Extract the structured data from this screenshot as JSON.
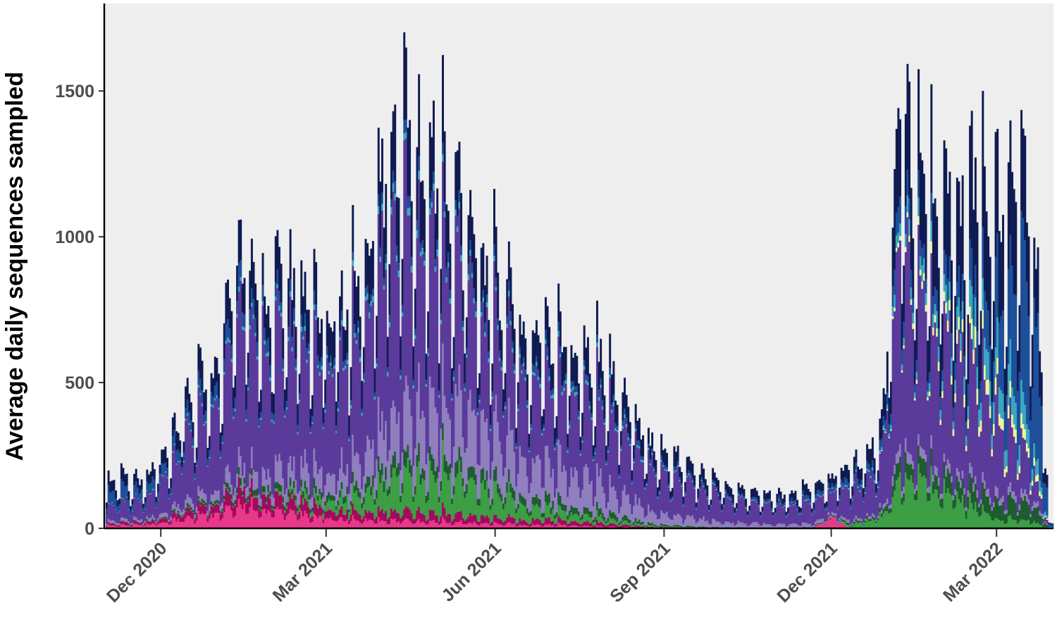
{
  "chart_data": {
    "type": "bar",
    "stacked": true,
    "title": "",
    "xlabel": "",
    "ylabel": "Average daily sequences sampled",
    "x_range": [
      "2020-11-01",
      "2022-03-31"
    ],
    "ylim": [
      0,
      1800
    ],
    "grid": false,
    "legend": "none",
    "x_ticks": [
      {
        "date": "2020-12-01",
        "label": "Dec 2020"
      },
      {
        "date": "2021-03-01",
        "label": "Mar 2021"
      },
      {
        "date": "2021-06-01",
        "label": "Jun 2021"
      },
      {
        "date": "2021-09-01",
        "label": "Sep 2021"
      },
      {
        "date": "2021-12-01",
        "label": "Dec 2021"
      },
      {
        "date": "2022-03-01",
        "label": "Mar 2022"
      }
    ],
    "y_ticks": [
      0,
      500,
      1000,
      1500
    ],
    "weekday_factors": [
      0.55,
      1.0,
      0.95,
      0.9,
      0.85,
      0.75,
      0.45
    ],
    "daily_total_peaks": [
      {
        "date": "2020-11-01",
        "value": 190
      },
      {
        "date": "2020-11-20",
        "value": 200
      },
      {
        "date": "2020-12-01",
        "value": 260
      },
      {
        "date": "2020-12-15",
        "value": 550
      },
      {
        "date": "2020-12-29",
        "value": 600
      },
      {
        "date": "2021-01-12",
        "value": 1050
      },
      {
        "date": "2021-01-26",
        "value": 900
      },
      {
        "date": "2021-02-09",
        "value": 980
      },
      {
        "date": "2021-02-23",
        "value": 860
      },
      {
        "date": "2021-03-09",
        "value": 880
      },
      {
        "date": "2021-03-23",
        "value": 1100
      },
      {
        "date": "2021-04-06",
        "value": 1550
      },
      {
        "date": "2021-04-20",
        "value": 1520
      },
      {
        "date": "2021-05-04",
        "value": 1420
      },
      {
        "date": "2021-05-18",
        "value": 1200
      },
      {
        "date": "2021-06-01",
        "value": 1000
      },
      {
        "date": "2021-06-15",
        "value": 820
      },
      {
        "date": "2021-06-29",
        "value": 760
      },
      {
        "date": "2021-07-13",
        "value": 720
      },
      {
        "date": "2021-07-27",
        "value": 680
      },
      {
        "date": "2021-08-10",
        "value": 520
      },
      {
        "date": "2021-08-24",
        "value": 340
      },
      {
        "date": "2021-09-07",
        "value": 280
      },
      {
        "date": "2021-09-21",
        "value": 210
      },
      {
        "date": "2021-10-05",
        "value": 170
      },
      {
        "date": "2021-10-19",
        "value": 140
      },
      {
        "date": "2021-11-02",
        "value": 130
      },
      {
        "date": "2021-11-16",
        "value": 150
      },
      {
        "date": "2021-11-30",
        "value": 200
      },
      {
        "date": "2021-12-14",
        "value": 260
      },
      {
        "date": "2021-12-28",
        "value": 380
      },
      {
        "date": "2022-01-07",
        "value": 1650
      },
      {
        "date": "2022-01-21",
        "value": 1350
      },
      {
        "date": "2022-02-04",
        "value": 1250
      },
      {
        "date": "2022-02-18",
        "value": 1350
      },
      {
        "date": "2022-03-04",
        "value": 1250
      },
      {
        "date": "2022-03-15",
        "value": 1350
      },
      {
        "date": "2022-03-22",
        "value": 1100
      },
      {
        "date": "2022-03-29",
        "value": 20
      }
    ],
    "series": [
      {
        "color": "#e8388a",
        "share": [
          {
            "date": "2020-11-01",
            "v": 0.06
          },
          {
            "date": "2021-01-15",
            "v": 0.1
          },
          {
            "date": "2021-04-01",
            "v": 0.025
          },
          {
            "date": "2021-07-01",
            "v": 0.02
          },
          {
            "date": "2021-09-15",
            "v": 0.0
          },
          {
            "date": "2021-11-20",
            "v": 0.0
          },
          {
            "date": "2021-12-01",
            "v": 0.25
          },
          {
            "date": "2021-12-10",
            "v": 0.0
          },
          {
            "date": "2022-03-31",
            "v": 0.0
          }
        ]
      },
      {
        "color": "#a3095f",
        "share": [
          {
            "date": "2020-11-01",
            "v": 0.04
          },
          {
            "date": "2021-01-15",
            "v": 0.07
          },
          {
            "date": "2021-04-01",
            "v": 0.03
          },
          {
            "date": "2021-07-01",
            "v": 0.03
          },
          {
            "date": "2021-09-15",
            "v": 0.01
          },
          {
            "date": "2021-11-01",
            "v": 0.0
          },
          {
            "date": "2022-03-31",
            "v": 0.0
          }
        ]
      },
      {
        "color": "#3d9e45",
        "share": [
          {
            "date": "2020-11-01",
            "v": 0.0
          },
          {
            "date": "2021-02-01",
            "v": 0.01
          },
          {
            "date": "2021-04-01",
            "v": 0.1
          },
          {
            "date": "2021-05-15",
            "v": 0.15
          },
          {
            "date": "2021-07-01",
            "v": 0.06
          },
          {
            "date": "2021-09-01",
            "v": 0.01
          },
          {
            "date": "2021-12-01",
            "v": 0.0
          },
          {
            "date": "2021-12-20",
            "v": 0.1
          },
          {
            "date": "2022-01-20",
            "v": 0.15
          },
          {
            "date": "2022-03-01",
            "v": 0.03
          },
          {
            "date": "2022-03-31",
            "v": 0.02
          }
        ]
      },
      {
        "color": "#1d5c2e",
        "share": [
          {
            "date": "2020-11-01",
            "v": 0.01
          },
          {
            "date": "2021-04-01",
            "v": 0.04
          },
          {
            "date": "2021-06-01",
            "v": 0.05
          },
          {
            "date": "2021-08-01",
            "v": 0.04
          },
          {
            "date": "2021-10-01",
            "v": 0.01
          },
          {
            "date": "2021-12-20",
            "v": 0.03
          },
          {
            "date": "2022-02-01",
            "v": 0.05
          },
          {
            "date": "2022-03-31",
            "v": 0.06
          }
        ]
      },
      {
        "color": "#8f7fbe",
        "share": [
          {
            "date": "2020-11-01",
            "v": 0.05
          },
          {
            "date": "2021-01-01",
            "v": 0.06
          },
          {
            "date": "2021-04-01",
            "v": 0.15
          },
          {
            "date": "2021-05-20",
            "v": 0.25
          },
          {
            "date": "2021-07-15",
            "v": 0.22
          },
          {
            "date": "2021-09-15",
            "v": 0.15
          },
          {
            "date": "2021-11-15",
            "v": 0.08
          },
          {
            "date": "2021-12-20",
            "v": 0.03
          },
          {
            "date": "2022-03-31",
            "v": 0.02
          }
        ]
      },
      {
        "color": "#5a3a9a",
        "share": [
          {
            "date": "2020-11-01",
            "v": 0.32
          },
          {
            "date": "2020-12-15",
            "v": 0.5
          },
          {
            "date": "2021-01-15",
            "v": 0.6
          },
          {
            "date": "2021-04-01",
            "v": 0.55
          },
          {
            "date": "2021-06-01",
            "v": 0.45
          },
          {
            "date": "2021-08-01",
            "v": 0.55
          },
          {
            "date": "2021-10-01",
            "v": 0.6
          },
          {
            "date": "2021-12-01",
            "v": 0.45
          },
          {
            "date": "2022-01-10",
            "v": 0.5
          },
          {
            "date": "2022-02-15",
            "v": 0.35
          },
          {
            "date": "2022-03-15",
            "v": 0.15
          },
          {
            "date": "2022-03-31",
            "v": 0.05
          }
        ]
      },
      {
        "color": "#f0f59a",
        "share": [
          {
            "date": "2020-11-01",
            "v": 0.0
          },
          {
            "date": "2021-12-20",
            "v": 0.0
          },
          {
            "date": "2022-01-20",
            "v": 0.02
          },
          {
            "date": "2022-02-20",
            "v": 0.05
          },
          {
            "date": "2022-03-31",
            "v": 0.02
          }
        ]
      },
      {
        "color": "#3aa7c0",
        "share": [
          {
            "date": "2020-11-01",
            "v": 0.01
          },
          {
            "date": "2021-04-01",
            "v": 0.02
          },
          {
            "date": "2021-09-01",
            "v": 0.02
          },
          {
            "date": "2021-12-20",
            "v": 0.02
          },
          {
            "date": "2022-02-01",
            "v": 0.05
          },
          {
            "date": "2022-03-01",
            "v": 0.1
          },
          {
            "date": "2022-03-31",
            "v": 0.05
          }
        ]
      },
      {
        "color": "#1e4f99",
        "share": [
          {
            "date": "2020-11-01",
            "v": 0.28
          },
          {
            "date": "2020-12-15",
            "v": 0.08
          },
          {
            "date": "2021-04-01",
            "v": 0.03
          },
          {
            "date": "2021-10-01",
            "v": 0.05
          },
          {
            "date": "2021-12-01",
            "v": 0.1
          },
          {
            "date": "2022-01-20",
            "v": 0.05
          },
          {
            "date": "2022-02-20",
            "v": 0.1
          },
          {
            "date": "2022-03-15",
            "v": 0.4
          },
          {
            "date": "2022-03-31",
            "v": 0.6
          }
        ]
      },
      {
        "color": "#0f1b52",
        "share": [
          {
            "date": "2020-11-01",
            "v": 0.23
          },
          {
            "date": "2020-12-15",
            "v": 0.15
          },
          {
            "date": "2021-04-01",
            "v": 0.2
          },
          {
            "date": "2021-07-01",
            "v": 0.18
          },
          {
            "date": "2021-10-01",
            "v": 0.23
          },
          {
            "date": "2021-12-01",
            "v": 0.18
          },
          {
            "date": "2022-01-20",
            "v": 0.25
          },
          {
            "date": "2022-03-01",
            "v": 0.3
          },
          {
            "date": "2022-03-31",
            "v": 0.2
          }
        ]
      }
    ]
  }
}
